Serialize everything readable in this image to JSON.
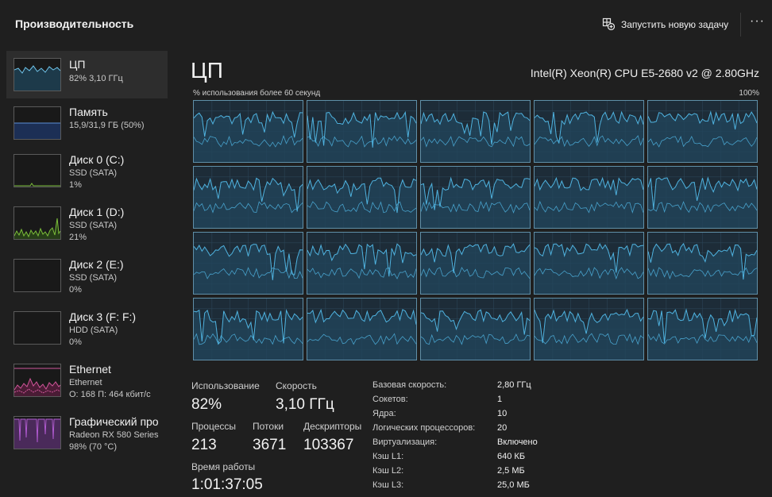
{
  "header": {
    "title": "Производительность",
    "run_task_label": "Запустить новую задачу",
    "more_label": "···"
  },
  "sidebar": {
    "items": [
      {
        "name": "ЦП",
        "sub1": "82% 3,10 ГГц",
        "sub2": "",
        "color": "#6ec2e8"
      },
      {
        "name": "Память",
        "sub1": "15,9/31,9 ГБ (50%)",
        "sub2": "",
        "color": "#5b8fd6"
      },
      {
        "name": "Диск 0 (C:)",
        "sub1": "SSD (SATA)",
        "sub2": "1%",
        "color": "#7cbf3a"
      },
      {
        "name": "Диск 1 (D:)",
        "sub1": "SSD (SATA)",
        "sub2": "21%",
        "color": "#7cbf3a"
      },
      {
        "name": "Диск 2 (E:)",
        "sub1": "SSD (SATA)",
        "sub2": "0%",
        "color": "#7cbf3a"
      },
      {
        "name": "Диск 3 (F: F:)",
        "sub1": "HDD (SATA)",
        "sub2": "0%",
        "color": "#7cbf3a"
      },
      {
        "name": "Ethernet",
        "sub1": "Ethernet",
        "sub2": "О: 168 П: 464 кбит/с",
        "color": "#d0569a"
      },
      {
        "name": "Графический про",
        "sub1": "Radeon RX 580 Series",
        "sub2": "98% (70 °C)",
        "color": "#b05ad0"
      }
    ]
  },
  "cpu": {
    "title": "ЦП",
    "model": "Intel(R) Xeon(R) CPU E5-2680 v2 @ 2.80GHz",
    "util_label": "% использования более 60 секунд",
    "util_max": "100%",
    "core_count": 20,
    "graph_color": "#4fb3e0"
  },
  "stats": {
    "usage_label": "Использование",
    "usage_value": "82%",
    "speed_label": "Скорость",
    "speed_value": "3,10 ГГц",
    "processes_label": "Процессы",
    "processes_value": "213",
    "threads_label": "Потоки",
    "threads_value": "3671",
    "handles_label": "Дескрипторы",
    "handles_value": "103367",
    "uptime_label": "Время работы",
    "uptime_value": "1:01:37:05"
  },
  "specs": [
    {
      "label": "Базовая скорость:",
      "value": "2,80 ГГц"
    },
    {
      "label": "Сокетов:",
      "value": "1"
    },
    {
      "label": "Ядра:",
      "value": "10"
    },
    {
      "label": "Логических процессоров:",
      "value": "20"
    },
    {
      "label": "Виртуализация:",
      "value": "Включено"
    },
    {
      "label": "Кэш L1:",
      "value": "640 КБ"
    },
    {
      "label": "Кэш L2:",
      "value": "2,5 МБ"
    },
    {
      "label": "Кэш L3:",
      "value": "25,0 МБ"
    }
  ]
}
